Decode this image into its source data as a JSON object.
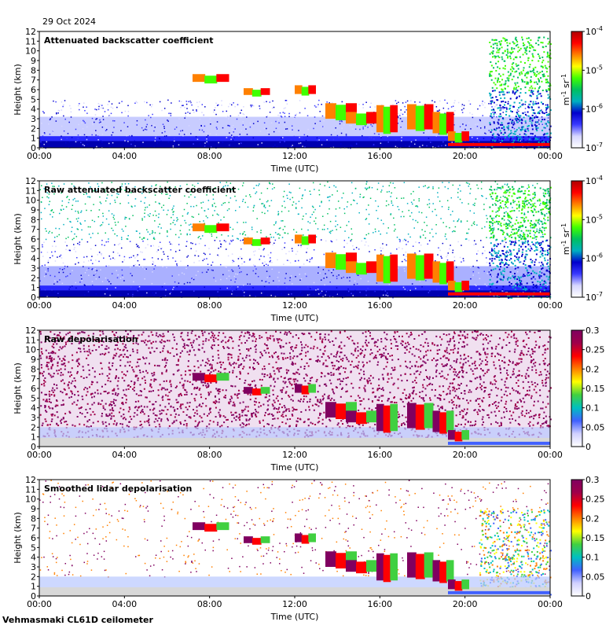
{
  "date": "29 Oct 2024",
  "footer": "Vehmasmaki CL61D ceilometer",
  "colors": {
    "jet": [
      "#ffffff",
      "#d6d6ff",
      "#3a3aff",
      "#0000cc",
      "#00b0c0",
      "#00c060",
      "#40ff00",
      "#ffff00",
      "#ff8000",
      "#ff0000",
      "#b00000"
    ],
    "depol": [
      "#ffffff",
      "#d0d0ff",
      "#4060ff",
      "#00c0c0",
      "#40d040",
      "#ffff00",
      "#ff8000",
      "#ff0000",
      "#a0004a",
      "#800060"
    ],
    "ground": "#d8d8d8"
  },
  "chart_data": [
    {
      "type": "heatmap",
      "title": "Attenuated backscatter coefficient",
      "xlabel": "Time (UTC)",
      "ylabel": "Height (km)",
      "xticks": [
        "00:00",
        "04:00",
        "08:00",
        "12:00",
        "16:00",
        "20:00",
        "00:00"
      ],
      "yticks": [
        "0",
        "1",
        "2",
        "3",
        "4",
        "5",
        "6",
        "7",
        "8",
        "9",
        "10",
        "11",
        "12"
      ],
      "ylim": [
        0,
        12
      ],
      "colorbar": {
        "scale": "log",
        "ticks": [
          "10",
          "10",
          "10",
          "10"
        ],
        "exps": [
          "-4",
          "-5",
          "-6",
          "-7"
        ],
        "unit_m": "m",
        "unit_m_exp": "-1",
        "unit_sr": " sr",
        "unit_sr_exp": "-1"
      }
    },
    {
      "type": "heatmap",
      "title": "Raw attenuated backscatter coefficient",
      "xlabel": "Time (UTC)",
      "ylabel": "Height (km)",
      "xticks": [
        "00:00",
        "04:00",
        "08:00",
        "12:00",
        "16:00",
        "20:00",
        "00:00"
      ],
      "yticks": [
        "0",
        "1",
        "2",
        "3",
        "4",
        "5",
        "6",
        "7",
        "8",
        "9",
        "10",
        "11",
        "12"
      ],
      "ylim": [
        0,
        12
      ],
      "colorbar": {
        "scale": "log",
        "ticks": [
          "10",
          "10",
          "10",
          "10"
        ],
        "exps": [
          "-4",
          "-5",
          "-6",
          "-7"
        ],
        "unit_m": "m",
        "unit_m_exp": "-1",
        "unit_sr": " sr",
        "unit_sr_exp": "-1"
      }
    },
    {
      "type": "heatmap",
      "title": "Raw depolarisation",
      "xlabel": "Time (UTC)",
      "ylabel": "Height (km)",
      "xticks": [
        "00:00",
        "04:00",
        "08:00",
        "12:00",
        "16:00",
        "20:00",
        "00:00"
      ],
      "yticks": [
        "0",
        "1",
        "2",
        "3",
        "4",
        "5",
        "6",
        "7",
        "8",
        "9",
        "10",
        "11",
        "12"
      ],
      "ylim": [
        0,
        12
      ],
      "colorbar": {
        "scale": "linear",
        "ticks": [
          "0.3",
          "0.25",
          "0.2",
          "0.15",
          "0.1",
          "0.05",
          "0"
        ]
      }
    },
    {
      "type": "heatmap",
      "title": "Smoothed lidar depolarisation",
      "xlabel": "Time (UTC)",
      "ylabel": "Height (km)",
      "xticks": [
        "00:00",
        "04:00",
        "08:00",
        "12:00",
        "16:00",
        "20:00",
        "00:00"
      ],
      "yticks": [
        "0",
        "1",
        "2",
        "3",
        "4",
        "5",
        "6",
        "7",
        "8",
        "9",
        "10",
        "11",
        "12"
      ],
      "ylim": [
        0,
        12
      ],
      "colorbar": {
        "scale": "linear",
        "ticks": [
          "0.3",
          "0.25",
          "0.2",
          "0.15",
          "0.1",
          "0.05",
          "0"
        ]
      }
    }
  ]
}
